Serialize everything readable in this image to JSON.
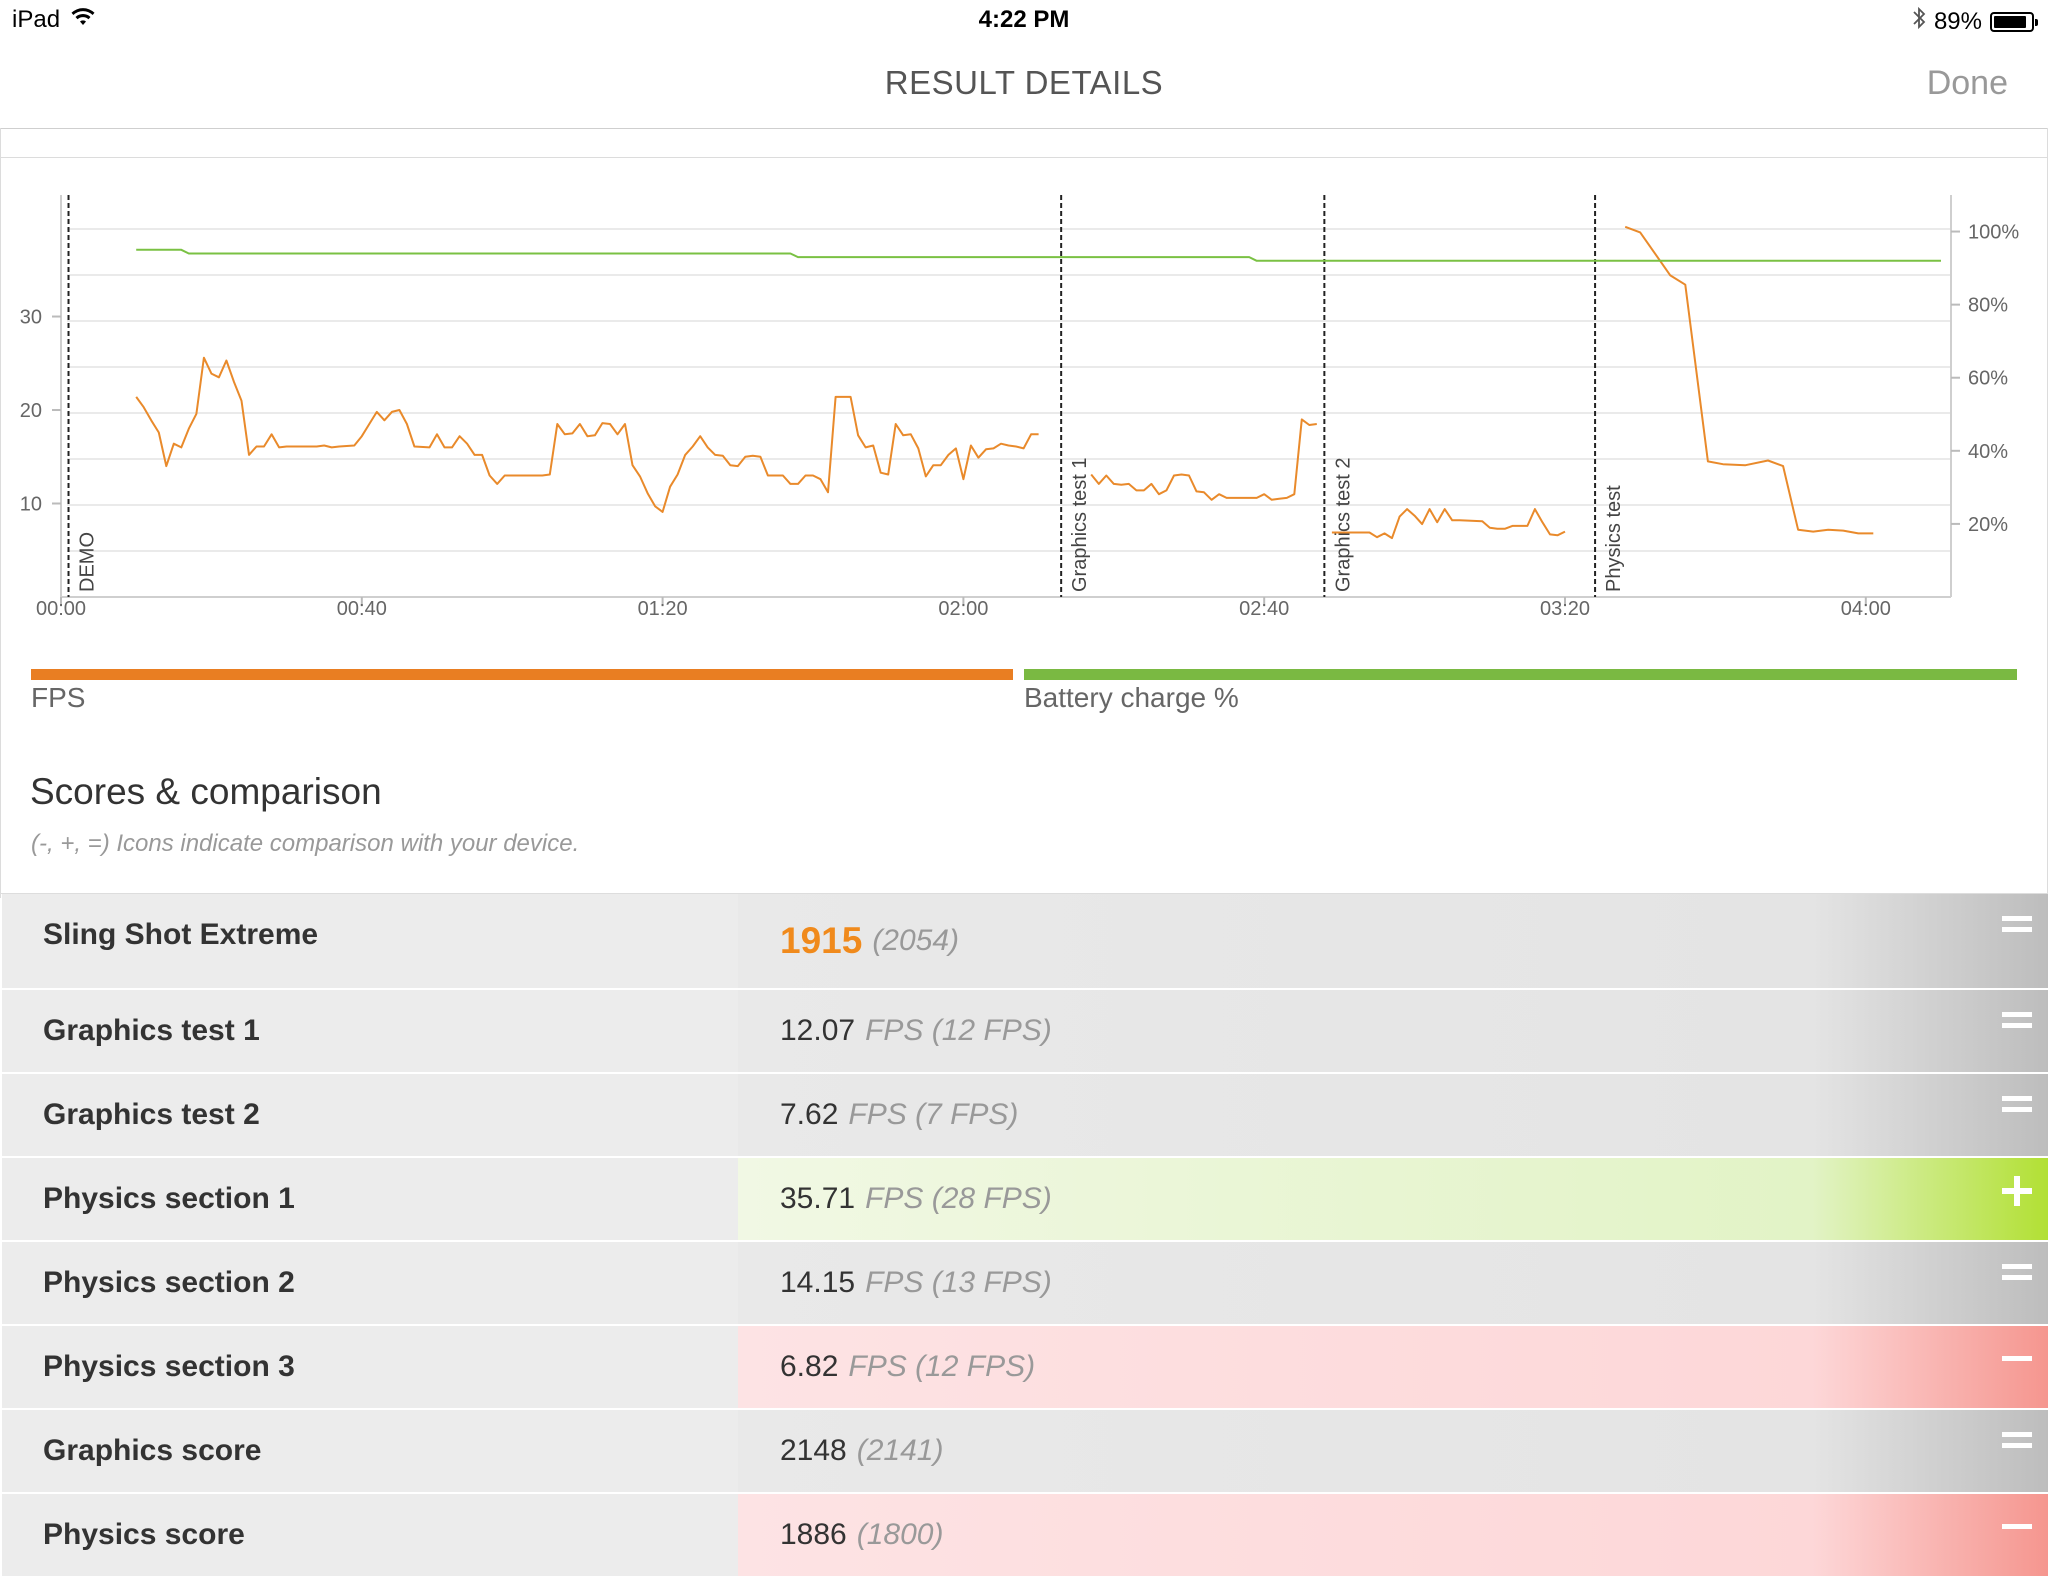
{
  "status_bar": {
    "device": "iPad",
    "time": "4:22 PM",
    "battery": "89%",
    "battery_level": 0.89
  },
  "nav": {
    "title": "RESULT DETAILS",
    "done_label": "Done"
  },
  "chart_data": {
    "type": "line",
    "x_ticks": [
      "00:00",
      "00:40",
      "01:20",
      "02:00",
      "02:40",
      "03:20",
      "04:00"
    ],
    "xlim": [
      0,
      250
    ],
    "y_left_ticks": [
      10,
      20,
      30
    ],
    "ylim_left": [
      0,
      43
    ],
    "y_right_ticks": [
      "20%",
      "40%",
      "60%",
      "80%",
      "100%"
    ],
    "ylim_right": [
      0,
      110
    ],
    "markers": [
      {
        "label": "DEMO",
        "x": 1
      },
      {
        "label": "Graphics test 1",
        "x": 133
      },
      {
        "label": "Graphics test 2",
        "x": 168
      },
      {
        "label": "Physics test",
        "x": 204
      }
    ],
    "series": [
      {
        "name": "FPS",
        "color": "#e98a2b",
        "axis": "left",
        "segments": [
          [
            [
              10,
              21.4
            ],
            [
              11,
              20.3
            ],
            [
              12,
              18.9
            ],
            [
              13,
              17.6
            ],
            [
              14,
              14
            ],
            [
              15,
              16.4
            ],
            [
              16,
              16
            ],
            [
              17,
              18
            ],
            [
              18,
              19.6
            ],
            [
              19,
              25.6
            ],
            [
              20,
              23.9
            ],
            [
              21,
              23.5
            ],
            [
              22,
              25.3
            ],
            [
              23,
              23
            ],
            [
              24,
              21
            ],
            [
              25,
              15.2
            ],
            [
              26,
              16.1
            ],
            [
              27,
              16.1
            ],
            [
              28,
              17.4
            ],
            [
              29,
              16
            ],
            [
              30,
              16.1
            ],
            [
              32,
              16.1
            ],
            [
              34,
              16.1
            ],
            [
              35,
              16.2
            ],
            [
              36,
              16
            ],
            [
              37,
              16.1
            ],
            [
              39,
              16.2
            ],
            [
              40,
              17.2
            ],
            [
              41,
              18.5
            ],
            [
              42,
              19.8
            ],
            [
              43,
              18.9
            ],
            [
              44,
              19.8
            ],
            [
              45,
              20
            ],
            [
              46,
              18.5
            ],
            [
              47,
              16.1
            ],
            [
              49,
              16
            ],
            [
              50,
              17.4
            ],
            [
              51,
              16
            ],
            [
              52,
              16
            ],
            [
              53,
              17.2
            ],
            [
              54,
              16.4
            ],
            [
              55,
              15.2
            ],
            [
              56,
              15.2
            ],
            [
              57,
              13
            ],
            [
              58,
              12.1
            ],
            [
              59,
              13
            ],
            [
              61,
              13
            ],
            [
              63,
              13
            ],
            [
              64,
              13
            ],
            [
              65,
              13.1
            ],
            [
              66,
              18.5
            ],
            [
              67,
              17.4
            ],
            [
              68,
              17.5
            ],
            [
              69,
              18.5
            ],
            [
              70,
              17.2
            ],
            [
              71,
              17.3
            ],
            [
              72,
              18.6
            ],
            [
              73,
              18.5
            ],
            [
              74,
              17.4
            ],
            [
              75,
              18.5
            ],
            [
              76,
              14.1
            ],
            [
              77,
              12.9
            ],
            [
              78,
              11.1
            ],
            [
              79,
              9.7
            ],
            [
              80,
              9.1
            ],
            [
              81,
              11.8
            ],
            [
              82,
              13.1
            ],
            [
              83,
              15.2
            ],
            [
              84,
              16.1
            ],
            [
              85,
              17.2
            ],
            [
              86,
              16
            ],
            [
              87,
              15.2
            ],
            [
              88,
              15.1
            ],
            [
              89,
              14.1
            ],
            [
              90,
              14
            ],
            [
              91,
              15
            ],
            [
              92,
              15.1
            ],
            [
              93,
              15
            ],
            [
              94,
              13
            ],
            [
              95,
              13
            ],
            [
              96,
              13
            ],
            [
              97,
              12.1
            ],
            [
              98,
              12.1
            ],
            [
              99,
              13
            ],
            [
              100,
              13
            ],
            [
              101,
              12.6
            ],
            [
              102,
              11.2
            ],
            [
              103,
              21.4
            ],
            [
              104,
              21.4
            ],
            [
              105,
              21.4
            ],
            [
              106,
              17.3
            ],
            [
              107,
              16
            ],
            [
              108,
              16.2
            ],
            [
              109,
              13.3
            ],
            [
              110,
              13.1
            ],
            [
              111,
              18.5
            ],
            [
              112,
              17.3
            ],
            [
              113,
              17.4
            ],
            [
              114,
              15.9
            ],
            [
              115,
              12.9
            ],
            [
              116,
              14.1
            ],
            [
              117,
              14.1
            ],
            [
              118,
              15.2
            ],
            [
              119,
              15.9
            ],
            [
              120,
              12.6
            ],
            [
              121,
              16.2
            ],
            [
              122,
              14.9
            ],
            [
              123,
              15.8
            ],
            [
              124,
              15.9
            ],
            [
              125,
              16.4
            ],
            [
              126,
              16.2
            ],
            [
              127,
              16.1
            ],
            [
              128,
              15.9
            ],
            [
              129,
              17.4
            ],
            [
              130,
              17.4
            ]
          ],
          [
            [
              137,
              13.1
            ],
            [
              138,
              12.1
            ],
            [
              139,
              13
            ],
            [
              140,
              12.1
            ],
            [
              141,
              12
            ],
            [
              142,
              12.1
            ],
            [
              143,
              11.4
            ],
            [
              144,
              11.4
            ],
            [
              145,
              12.1
            ],
            [
              146,
              11
            ],
            [
              147,
              11.4
            ],
            [
              148,
              13
            ],
            [
              149,
              13.1
            ],
            [
              150,
              13
            ],
            [
              151,
              11.3
            ],
            [
              152,
              11.2
            ],
            [
              153,
              10.4
            ],
            [
              154,
              11
            ],
            [
              155,
              10.6
            ],
            [
              156,
              10.6
            ],
            [
              158,
              10.6
            ],
            [
              159,
              10.6
            ],
            [
              160,
              11
            ],
            [
              161,
              10.4
            ],
            [
              162,
              10.5
            ],
            [
              163,
              10.6
            ],
            [
              164,
              11
            ],
            [
              165,
              19
            ],
            [
              166,
              18.4
            ],
            [
              167,
              18.5
            ]
          ],
          [
            [
              169,
              6.9
            ],
            [
              170,
              6.9
            ],
            [
              172,
              6.9
            ],
            [
              174,
              6.9
            ],
            [
              175,
              6.4
            ],
            [
              176,
              6.8
            ],
            [
              177,
              6.3
            ],
            [
              178,
              8.6
            ],
            [
              179,
              9.4
            ],
            [
              180,
              8.7
            ],
            [
              181,
              7.8
            ],
            [
              182,
              9.4
            ],
            [
              183,
              8
            ],
            [
              184,
              9.4
            ],
            [
              185,
              8.2
            ],
            [
              186,
              8.2
            ],
            [
              189,
              8.1
            ],
            [
              190,
              7.4
            ],
            [
              191,
              7.3
            ],
            [
              192,
              7.3
            ],
            [
              193,
              7.6
            ],
            [
              194,
              7.6
            ],
            [
              195,
              7.6
            ],
            [
              196,
              9.4
            ],
            [
              197,
              8
            ],
            [
              198,
              6.7
            ],
            [
              199,
              6.6
            ],
            [
              200,
              7
            ]
          ],
          [
            [
              208,
              39.6
            ],
            [
              210,
              39
            ],
            [
              214,
              34.4
            ],
            [
              216,
              33.4
            ],
            [
              219,
              14.5
            ],
            [
              221,
              14.2
            ],
            [
              224,
              14.1
            ],
            [
              227,
              14.6
            ],
            [
              229,
              14
            ],
            [
              231,
              7.2
            ],
            [
              233,
              7
            ],
            [
              235,
              7.2
            ],
            [
              237,
              7.1
            ],
            [
              239,
              6.8
            ],
            [
              241,
              6.8
            ]
          ]
        ]
      },
      {
        "name": "Battery charge %",
        "color": "#7ac143",
        "axis": "right",
        "points": [
          [
            10,
            95
          ],
          [
            16,
            95
          ],
          [
            17,
            94
          ],
          [
            97,
            94
          ],
          [
            98,
            93
          ],
          [
            158,
            93
          ],
          [
            159,
            92
          ],
          [
            250,
            92
          ]
        ]
      }
    ]
  },
  "legend": {
    "fps_label": "FPS",
    "fps_color": "#e97e22",
    "battery_label": "Battery charge %",
    "battery_color": "#7ab942"
  },
  "scores": {
    "title": "Scores & comparison",
    "note": "(-, +, =) Icons indicate comparison with your device.",
    "rows": [
      {
        "name": "Sling Shot Extreme",
        "value": "1915",
        "unit": "",
        "ref": "(2054)",
        "cmp": "="
      },
      {
        "name": "Graphics test 1",
        "value": "12.07",
        "unit": "FPS",
        "ref": "(12 FPS)",
        "cmp": "="
      },
      {
        "name": "Graphics test 2",
        "value": "7.62",
        "unit": "FPS",
        "ref": "(7 FPS)",
        "cmp": "="
      },
      {
        "name": "Physics section 1",
        "value": "35.71",
        "unit": "FPS",
        "ref": "(28 FPS)",
        "cmp": "+"
      },
      {
        "name": "Physics section 2",
        "value": "14.15",
        "unit": "FPS",
        "ref": "(13 FPS)",
        "cmp": "="
      },
      {
        "name": "Physics section 3",
        "value": "6.82",
        "unit": "FPS",
        "ref": "(12 FPS)",
        "cmp": "-"
      },
      {
        "name": "Graphics score",
        "value": "2148",
        "unit": "",
        "ref": "(2141)",
        "cmp": "="
      },
      {
        "name": "Physics score",
        "value": "1886",
        "unit": "",
        "ref": "(1800)",
        "cmp": "-"
      }
    ]
  }
}
